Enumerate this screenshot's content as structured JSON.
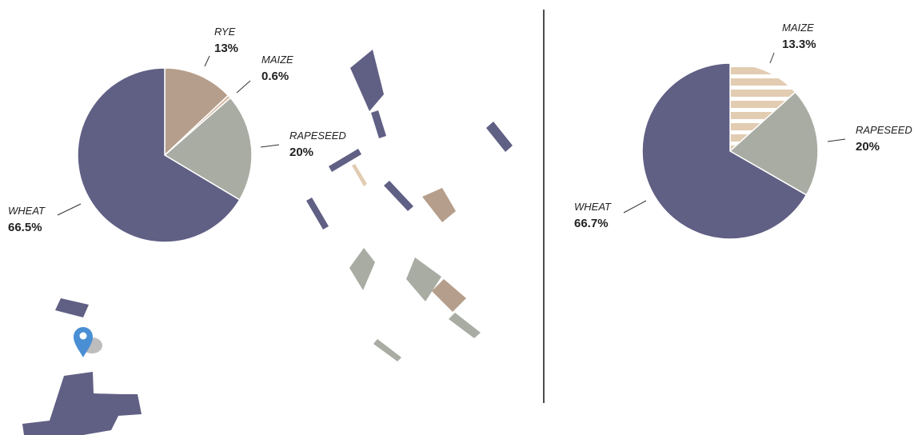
{
  "colors": {
    "wheat": "#605f84",
    "rye": "#b59e8b",
    "maize_left": "#d8b9a4",
    "maize_right": "#e2ccb2",
    "rapeseed": "#a8aca2",
    "divider": "#111111",
    "marker": "#4a8fd4"
  },
  "icons": {
    "location": "map-pin-icon"
  },
  "chart_data": [
    {
      "type": "pie",
      "slices": [
        {
          "key": "rye",
          "label": "RYE",
          "value": 13,
          "display": "13%"
        },
        {
          "key": "maize",
          "label": "MAIZE",
          "value": 0.6,
          "display": "0.6%"
        },
        {
          "key": "rapeseed",
          "label": "RAPESEED",
          "value": 20,
          "display": "20%"
        },
        {
          "key": "wheat",
          "label": "WHEAT",
          "value": 66.5,
          "display": "66.5%"
        }
      ]
    },
    {
      "type": "pie",
      "slices": [
        {
          "key": "maize",
          "label": "MAIZE",
          "value": 13.3,
          "display": "13.3%",
          "pattern": "stripes"
        },
        {
          "key": "rapeseed",
          "label": "RAPESEED",
          "value": 20,
          "display": "20%"
        },
        {
          "key": "wheat",
          "label": "WHEAT",
          "value": 66.7,
          "display": "66.7%"
        }
      ]
    }
  ]
}
